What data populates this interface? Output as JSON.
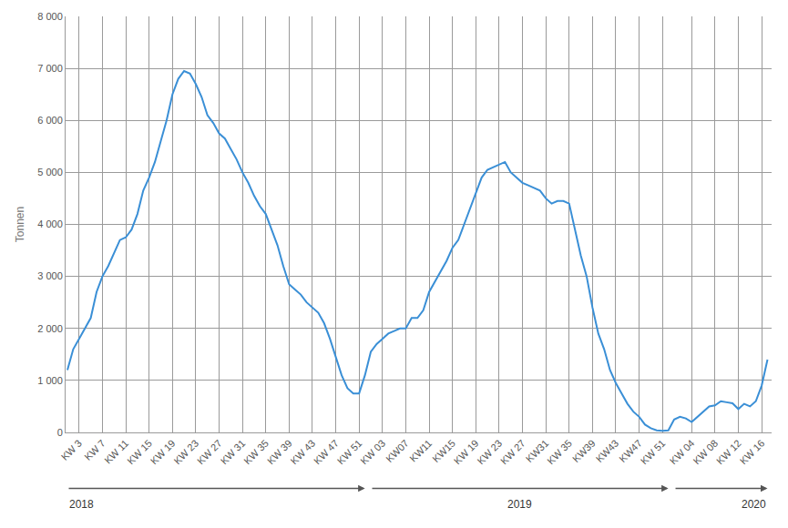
{
  "chart_data": {
    "type": "line",
    "y_label": "Tonnen",
    "color": "#3a8fd6",
    "grid": true,
    "ylim": [
      0,
      8000
    ],
    "yticks": [
      0,
      {
        "value": 1000,
        "label": "1 000"
      },
      {
        "value": 2000,
        "label": "2 000"
      },
      {
        "value": 3000,
        "label": "3 000"
      },
      {
        "value": 4000,
        "label": "4 000"
      },
      {
        "value": 5000,
        "label": "5 000"
      },
      {
        "value": 6000,
        "label": "6 000"
      },
      {
        "value": 7000,
        "label": "7 000"
      },
      {
        "value": 8000,
        "label": "8 000"
      }
    ],
    "categories": [
      null,
      null,
      "KW 3",
      null,
      null,
      null,
      "KW 7",
      null,
      null,
      null,
      "KW 11",
      null,
      null,
      null,
      "KW 15",
      null,
      null,
      null,
      "KW 19",
      null,
      null,
      null,
      "KW 23",
      null,
      null,
      null,
      "KW 27",
      null,
      null,
      null,
      "KW 31",
      null,
      null,
      null,
      "KW 35",
      null,
      null,
      null,
      "KW 39",
      null,
      null,
      null,
      "KW 43",
      null,
      null,
      null,
      "KW 47",
      null,
      null,
      null,
      "KW 51",
      null,
      null,
      null,
      "KW 03",
      null,
      null,
      null,
      "KW07",
      null,
      null,
      null,
      "KW11",
      null,
      null,
      null,
      "KW15",
      null,
      null,
      null,
      "KW 19",
      null,
      null,
      null,
      "KW 23",
      null,
      null,
      null,
      "KW 27",
      null,
      null,
      null,
      "KW31",
      null,
      null,
      null,
      "KW 35",
      null,
      null,
      null,
      "KW39",
      null,
      null,
      null,
      "KW43",
      null,
      null,
      null,
      "KW47",
      null,
      null,
      null,
      "KW 51",
      null,
      null,
      null,
      null,
      "KW 04",
      null,
      null,
      null,
      "KW 08",
      null,
      null,
      null,
      "KW 12",
      null,
      null,
      null,
      "KW 16",
      null
    ],
    "values": [
      1200,
      1600,
      1800,
      2000,
      2200,
      2700,
      3000,
      3200,
      3450,
      3700,
      3750,
      3900,
      4200,
      4650,
      4900,
      5200,
      5600,
      6000,
      6500,
      6800,
      6950,
      6900,
      6700,
      6450,
      6100,
      5950,
      5750,
      5650,
      5450,
      5250,
      5000,
      4800,
      4550,
      4350,
      4200,
      3900,
      3600,
      3200,
      2850,
      2750,
      2650,
      2500,
      2400,
      2300,
      2100,
      1800,
      1450,
      1100,
      850,
      750,
      750,
      1100,
      1550,
      1700,
      1800,
      1900,
      1950,
      2000,
      2000,
      2200,
      2200,
      2350,
      2700,
      2900,
      3100,
      3300,
      3550,
      3700,
      4000,
      4300,
      4600,
      4900,
      5050,
      5100,
      5150,
      5200,
      5000,
      4900,
      4800,
      4750,
      4700,
      4650,
      4500,
      4400,
      4450,
      4450,
      4400,
      3900,
      3400,
      3000,
      2400,
      1900,
      1600,
      1200,
      950,
      750,
      550,
      400,
      300,
      150,
      80,
      40,
      30,
      40,
      250,
      300,
      270,
      200,
      300,
      400,
      500,
      520,
      600,
      580,
      560,
      450,
      550,
      500,
      600,
      900,
      1400
    ],
    "annotations": [
      {
        "text": "2018",
        "start": 0,
        "end": 51
      },
      {
        "text": "2019",
        "start": 52,
        "end": 103
      },
      {
        "text": "2020",
        "start": 104,
        "end": 120
      }
    ]
  }
}
